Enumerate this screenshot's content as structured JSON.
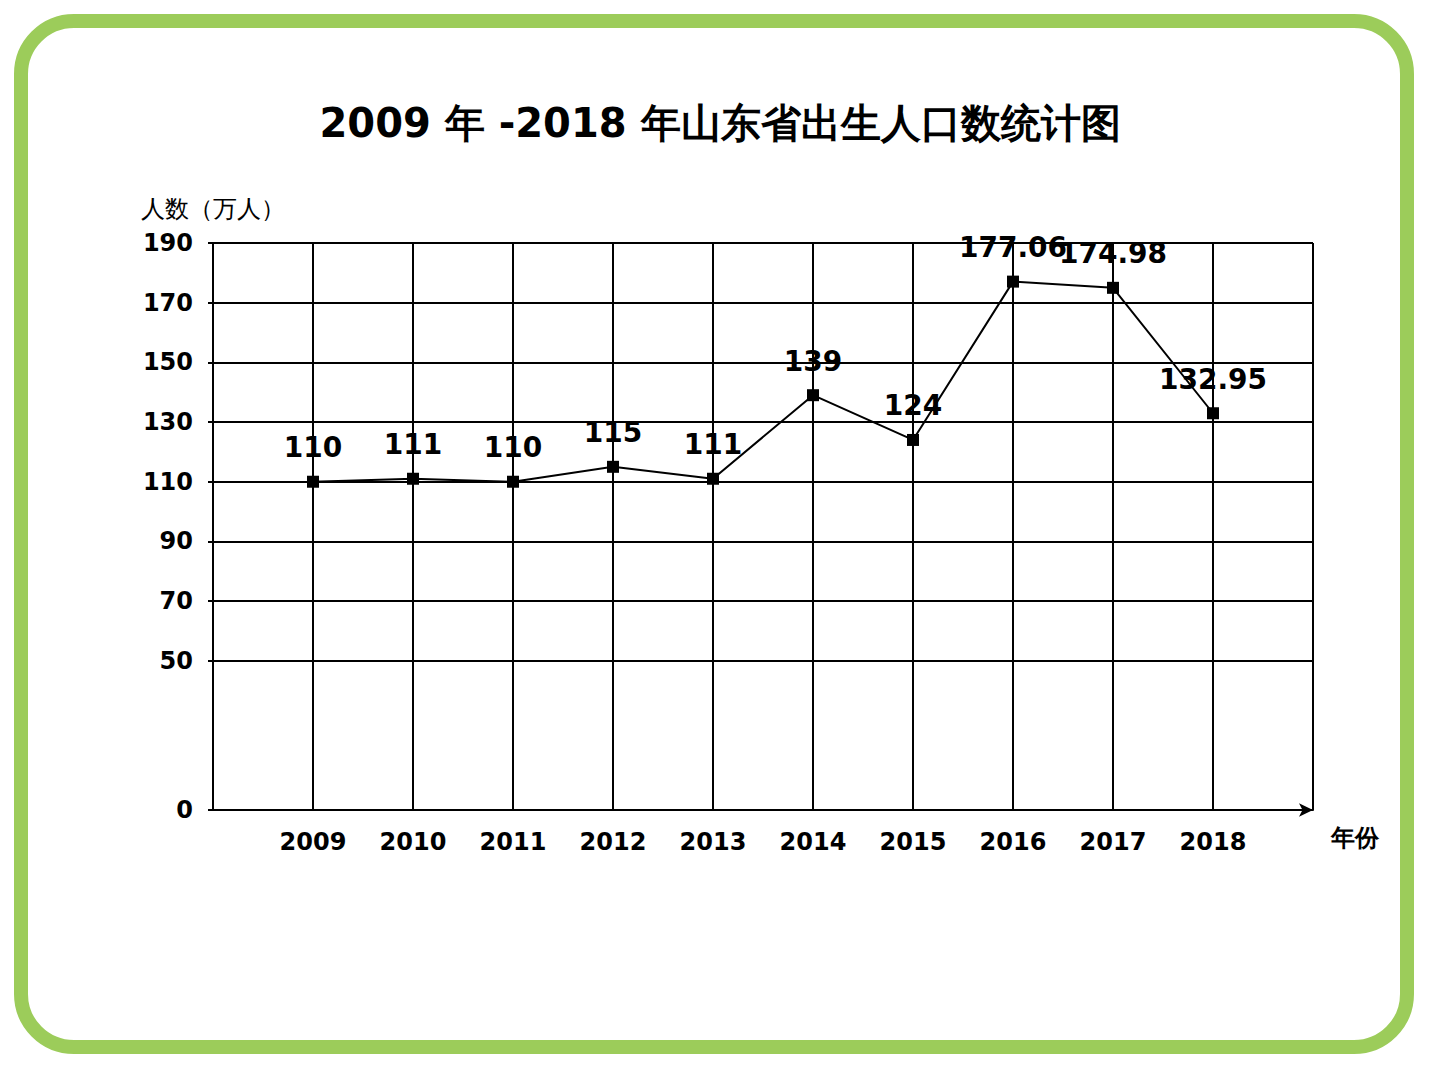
{
  "chart_data": {
    "type": "line",
    "title": "2009 年 -2018 年山东省出生人口数统计图",
    "y_label": "人数（万人）",
    "x_label": "年份",
    "categories": [
      null,
      "2009",
      "2010",
      "2011",
      "2012",
      "2013",
      "2014",
      "2015",
      "2016",
      "2017",
      "2018",
      null
    ],
    "values": [
      null,
      110,
      111,
      110,
      115,
      111,
      139,
      124,
      177.06,
      174.98,
      132.95,
      null
    ],
    "color": "#000000",
    "marker": "square",
    "ylim": [
      0,
      190
    ],
    "yticks": [
      0,
      50,
      70,
      90,
      110,
      130,
      150,
      170,
      190
    ],
    "grid": true,
    "data_labels": true
  }
}
